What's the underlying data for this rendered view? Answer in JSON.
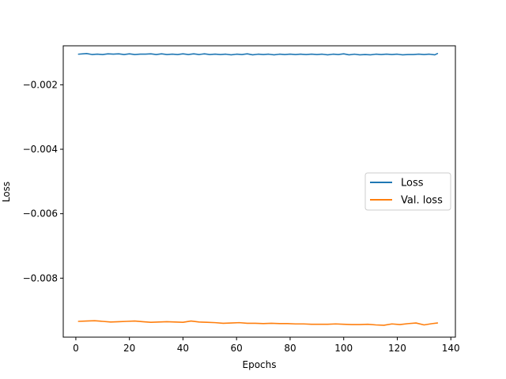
{
  "chart_data": {
    "type": "line",
    "xlabel": "Epochs",
    "ylabel": "Loss",
    "xlim": [
      -4.7,
      141.7
    ],
    "ylim": [
      -0.00983,
      -0.00079
    ],
    "xticks": [
      0,
      20,
      40,
      60,
      80,
      100,
      120,
      140
    ],
    "xtick_labels": [
      "0",
      "20",
      "40",
      "60",
      "80",
      "100",
      "120",
      "140"
    ],
    "yticks": [
      -0.008,
      -0.006,
      -0.004,
      -0.002
    ],
    "ytick_labels": [
      "−0.008",
      "−0.006",
      "−0.004",
      "−0.002"
    ],
    "grid": false,
    "legend_position": "center-right",
    "series": [
      {
        "name": "Loss",
        "color": "#1f77b4",
        "x": [
          1,
          4,
          6,
          8,
          10,
          12,
          14,
          16,
          18,
          20,
          22,
          24,
          26,
          28,
          30,
          32,
          34,
          36,
          38,
          40,
          42,
          44,
          46,
          48,
          50,
          52,
          54,
          56,
          58,
          60,
          62,
          64,
          66,
          68,
          70,
          72,
          74,
          76,
          78,
          80,
          82,
          84,
          86,
          88,
          90,
          92,
          94,
          96,
          98,
          100,
          102,
          104,
          106,
          108,
          110,
          112,
          114,
          116,
          118,
          120,
          122,
          124,
          126,
          128,
          130,
          132,
          134,
          135
        ],
        "values": [
          -0.00105,
          -0.00103,
          -0.00106,
          -0.00105,
          -0.00106,
          -0.00104,
          -0.00105,
          -0.00104,
          -0.00106,
          -0.00104,
          -0.00106,
          -0.00105,
          -0.00105,
          -0.00104,
          -0.00106,
          -0.00104,
          -0.00106,
          -0.00105,
          -0.00106,
          -0.00104,
          -0.00106,
          -0.00104,
          -0.00106,
          -0.00104,
          -0.00106,
          -0.00105,
          -0.00106,
          -0.00105,
          -0.00107,
          -0.00105,
          -0.00106,
          -0.00104,
          -0.00107,
          -0.00105,
          -0.00106,
          -0.00105,
          -0.00107,
          -0.00105,
          -0.00106,
          -0.00105,
          -0.00106,
          -0.00105,
          -0.00106,
          -0.00105,
          -0.00106,
          -0.00105,
          -0.00107,
          -0.00105,
          -0.00106,
          -0.00104,
          -0.00107,
          -0.00105,
          -0.00107,
          -0.00106,
          -0.00107,
          -0.00105,
          -0.00106,
          -0.00105,
          -0.00106,
          -0.00105,
          -0.00107,
          -0.00106,
          -0.00106,
          -0.00105,
          -0.00106,
          -0.00105,
          -0.00107,
          -0.00103
        ]
      },
      {
        "name": "Val. loss",
        "color": "#ff7f0e",
        "x": [
          1,
          4,
          7,
          10,
          13,
          16,
          19,
          22,
          25,
          28,
          31,
          34,
          37,
          40,
          43,
          46,
          49,
          52,
          55,
          58,
          61,
          64,
          67,
          70,
          73,
          76,
          79,
          82,
          85,
          88,
          91,
          94,
          97,
          100,
          103,
          106,
          109,
          112,
          115,
          118,
          121,
          124,
          127,
          130,
          133,
          135
        ],
        "values": [
          -0.00934,
          -0.00933,
          -0.00932,
          -0.00934,
          -0.00936,
          -0.00935,
          -0.00934,
          -0.00933,
          -0.00935,
          -0.00937,
          -0.00936,
          -0.00935,
          -0.00936,
          -0.00937,
          -0.00933,
          -0.00936,
          -0.00937,
          -0.00938,
          -0.0094,
          -0.00939,
          -0.00938,
          -0.0094,
          -0.0094,
          -0.00941,
          -0.0094,
          -0.00941,
          -0.00941,
          -0.00942,
          -0.00942,
          -0.00943,
          -0.00943,
          -0.00943,
          -0.00942,
          -0.00943,
          -0.00944,
          -0.00944,
          -0.00943,
          -0.00945,
          -0.00946,
          -0.00942,
          -0.00944,
          -0.00941,
          -0.00939,
          -0.00945,
          -0.00941,
          -0.00939
        ]
      }
    ]
  }
}
